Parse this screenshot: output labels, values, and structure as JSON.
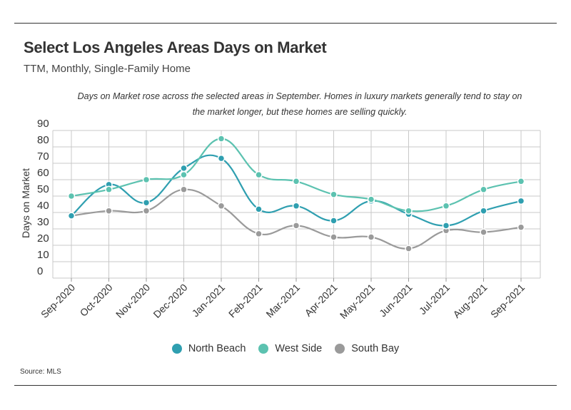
{
  "header": {
    "title": "Select Los Angeles Areas Days on Market",
    "subtitle": "TTM, Monthly, Single-Family Home",
    "note": "Days on Market rose across the selected areas in September. Homes in luxury markets generally tend to stay on the market longer, but these homes are selling quickly."
  },
  "source": "Source:  MLS",
  "chart_data": {
    "type": "line",
    "ylabel": "Days on Market",
    "ylim": [
      0,
      90
    ],
    "yticks": [
      0,
      10,
      20,
      30,
      40,
      50,
      60,
      70,
      80,
      90
    ],
    "categories": [
      "Sep-2020",
      "Oct-2020",
      "Nov-2020",
      "Dec-2020",
      "Jan-2021",
      "Feb-2021",
      "Mar-2021",
      "Apr-2021",
      "May-2021",
      "Jun-2021",
      "Jul-2021",
      "Aug-2021",
      "Sep-2021"
    ],
    "grid": true,
    "legend_position": "bottom",
    "series": [
      {
        "name": "North Beach",
        "color": "#2f9fb0",
        "values": [
          38,
          57,
          46,
          67,
          73,
          42,
          44,
          35,
          47,
          39,
          32,
          41,
          47
        ]
      },
      {
        "name": "West Side",
        "color": "#5cc2b0",
        "values": [
          50,
          54,
          60,
          63,
          85,
          63,
          59,
          51,
          48,
          41,
          44,
          54,
          59
        ]
      },
      {
        "name": "South Bay",
        "color": "#9a9a9a",
        "values": [
          38,
          41,
          41,
          54,
          44,
          27,
          32,
          25,
          25,
          18,
          29,
          28,
          31
        ]
      }
    ]
  }
}
